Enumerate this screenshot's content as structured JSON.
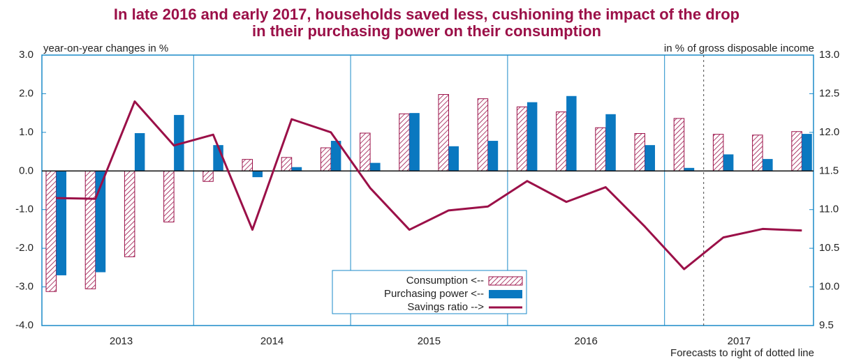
{
  "chart_data": {
    "type": "bar_line",
    "title": "In late 2016 and early 2017, households saved less, cushioning the impact of the drop",
    "title_line2": "in their purchasing power on their consumption",
    "y_label": "year-on-year changes in %",
    "y2_label": "in % of gross disposable income",
    "note": "Forecasts to right of dotted line",
    "years": [
      "2013",
      "2014",
      "2015",
      "2016",
      "2017"
    ],
    "categories": [
      null,
      null,
      null,
      null,
      null,
      null,
      null,
      null,
      null,
      null,
      null,
      null,
      null,
      null,
      null,
      null,
      null,
      null,
      null,
      null
    ],
    "series": [
      {
        "name": "Consumption <--",
        "color": "#9b1048",
        "kind": "bar",
        "pattern": "hatch",
        "values": [
          -3.12,
          -3.05,
          -2.22,
          -1.32,
          -0.27,
          0.3,
          0.35,
          0.6,
          0.98,
          1.48,
          1.98,
          1.87,
          1.66,
          1.53,
          1.12,
          0.97,
          1.36,
          0.95,
          0.93,
          1.02
        ]
      },
      {
        "name": "Purchasing power <--",
        "color": "#0a78c0",
        "kind": "bar",
        "values": [
          -2.7,
          -2.62,
          0.98,
          1.45,
          0.67,
          -0.16,
          0.1,
          0.78,
          0.21,
          1.5,
          0.64,
          0.78,
          1.78,
          1.94,
          1.47,
          0.67,
          0.08,
          0.43,
          0.31,
          0.96
        ]
      },
      {
        "name": "Savings ratio -->",
        "color": "#9b1048",
        "kind": "line",
        "axis": "y2",
        "values": [
          11.15,
          11.14,
          12.4,
          11.83,
          11.97,
          10.74,
          12.17,
          12.0,
          11.28,
          10.74,
          10.99,
          11.04,
          11.37,
          11.1,
          11.29,
          10.78,
          10.23,
          10.64,
          10.75,
          10.73
        ]
      }
    ],
    "ylim": [
      -4,
      3
    ],
    "yticks": [
      {
        "value": 3,
        "label": "3.0"
      },
      {
        "value": 2,
        "label": "2.0"
      },
      {
        "value": 1,
        "label": "1.0"
      },
      {
        "value": 0,
        "label": "0.0"
      },
      {
        "value": -1,
        "label": "-1.0"
      },
      {
        "value": -2,
        "label": "-2.0"
      },
      {
        "value": -3,
        "label": "-3.0"
      },
      {
        "value": -4,
        "label": "-4.0"
      }
    ],
    "y2lim": [
      9.5,
      13
    ],
    "y2ticks": [
      {
        "value": 13,
        "label": "13.0"
      },
      12.5,
      {
        "value": 12,
        "label": "12.0"
      },
      11.5,
      {
        "value": 11,
        "label": "11.0"
      },
      10.5,
      {
        "value": 10,
        "label": "10.0"
      },
      9.5
    ]
  }
}
